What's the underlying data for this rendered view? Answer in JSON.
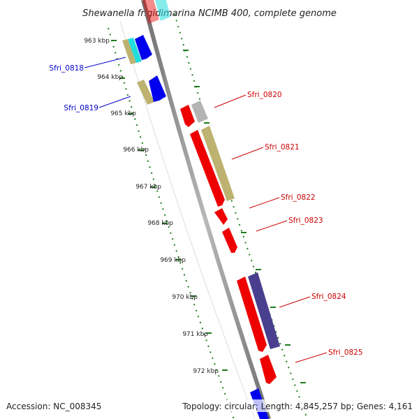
{
  "title": "Shewanella frigidimarina NCIMB 400, complete genome",
  "footer": {
    "accession": "Accession: NC_008345",
    "summary": "Topology: circular; Length: 4,845,257 bp; Genes: 4,161"
  },
  "ticks": [
    "963 kbp",
    "964 kbp",
    "965 kbp",
    "966 kbp",
    "967 kbp",
    "968 kbp",
    "969 kbp",
    "970 kbp",
    "971 kbp",
    "972 kbp"
  ],
  "genes_left": [
    {
      "label": "Sfri_0818",
      "color": "#0000cc"
    },
    {
      "label": "Sfri_0819",
      "color": "#0000cc"
    }
  ],
  "genes_right": [
    {
      "label": "Sfri_0820",
      "color": "#cc0000"
    },
    {
      "label": "Sfri_0821",
      "color": "#cc0000"
    },
    {
      "label": "Sfri_0822",
      "color": "#cc0000"
    },
    {
      "label": "Sfri_0823",
      "color": "#cc0000"
    },
    {
      "label": "Sfri_0824",
      "color": "#cc0000"
    },
    {
      "label": "Sfri_0825",
      "color": "#cc0000"
    }
  ],
  "colors": {
    "backbone": "#8a8a8a",
    "tick": "#1f7a1f",
    "cds_forward": "#ee0000",
    "cds_reverse": "#0000ee",
    "other_feature": "#bdb270",
    "rna": "#22dddd",
    "misc": "#b4b4b4",
    "dark_feature": "#4a3f8f"
  }
}
